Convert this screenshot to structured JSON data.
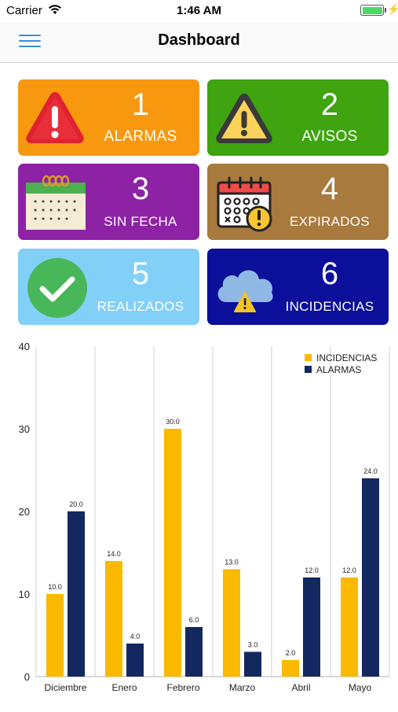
{
  "status_bar": {
    "carrier": "Carrier",
    "time": "1:46 AM",
    "battery_level": 1.0
  },
  "nav": {
    "title": "Dashboard",
    "menu_icon": "hamburger-menu-icon"
  },
  "tiles": [
    {
      "count": "1",
      "label": "ALARMAS",
      "color": "#f7980f",
      "icon": "alarm-triangle-icon"
    },
    {
      "count": "2",
      "label": "AVISOS",
      "color": "#3fa40f",
      "icon": "warning-triangle-icon"
    },
    {
      "count": "3",
      "label": "SIN FECHA",
      "color": "#8e22a5",
      "icon": "calendar-icon"
    },
    {
      "count": "4",
      "label": "EXPIRADOS",
      "color": "#a87a3e",
      "icon": "calendar-expired-icon"
    },
    {
      "count": "5",
      "label": "REALIZADOS",
      "color": "#82d0f8",
      "icon": "check-circle-icon"
    },
    {
      "count": "6",
      "label": "INCIDENCIAS",
      "color": "#0b0f9a",
      "icon": "cloud-warning-icon"
    }
  ],
  "chart_data": {
    "type": "bar",
    "categories": [
      "Diciembre",
      "Enero",
      "Febrero",
      "Marzo",
      "Abril",
      "Mayo"
    ],
    "series": [
      {
        "name": "INCIDENCIAS",
        "color": "#fbb900",
        "values": [
          10.0,
          14.0,
          30.0,
          13.0,
          2.0,
          12.0
        ],
        "labels": [
          "10.0",
          "14.0",
          "30.0",
          "13.0",
          "2.0",
          "12.0"
        ]
      },
      {
        "name": "ALARMAS",
        "color": "#13285e",
        "values": [
          20.0,
          4.0,
          6.0,
          3.0,
          12.0,
          24.0
        ],
        "labels": [
          "20.0",
          "4.0",
          "6.0",
          "3.0",
          "12.0",
          "24.0"
        ]
      }
    ],
    "yticks": [
      "0",
      "10",
      "20",
      "30",
      "40"
    ],
    "ylim": [
      0,
      40
    ],
    "grid": "vertical",
    "legend": "top-right"
  }
}
